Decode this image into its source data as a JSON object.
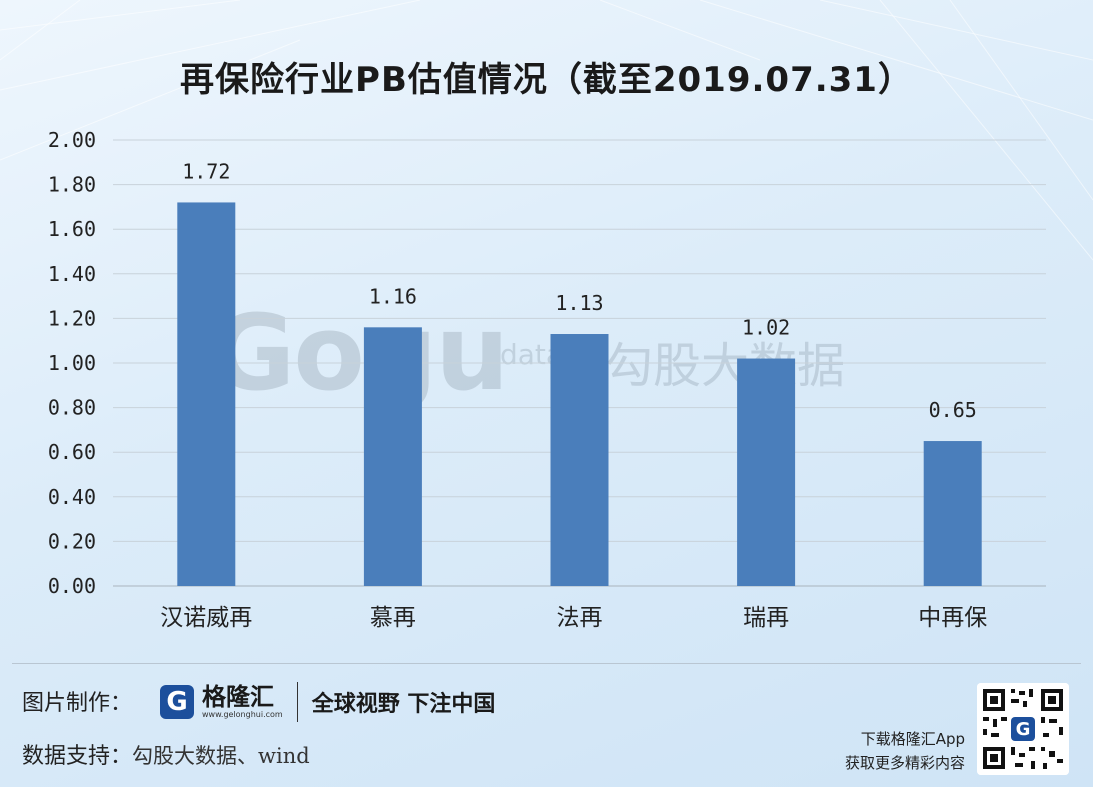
{
  "title": "再保险行业PB估值情况（截至2019.07.31）",
  "chart_data": {
    "type": "bar",
    "categories": [
      "汉诺威再",
      "慕再",
      "法再",
      "瑞再",
      "中再保"
    ],
    "values": [
      1.72,
      1.16,
      1.13,
      1.02,
      0.65
    ],
    "data_labels": [
      "1.72",
      "1.16",
      "1.13",
      "1.02",
      "0.65"
    ],
    "y_ticks": [
      "0.00",
      "0.20",
      "0.40",
      "0.60",
      "0.80",
      "1.00",
      "1.20",
      "1.40",
      "1.60",
      "1.80",
      "2.00"
    ],
    "ylim": [
      0,
      2
    ],
    "grid": true,
    "bar_color": "#4a7ebb"
  },
  "watermark": {
    "logo": "Gogu",
    "data": "data",
    "cn": "勾股大数据"
  },
  "footer": {
    "made_by_label": "图片制作：",
    "brand_icon": "G",
    "brand_name": "格隆汇",
    "brand_url": "www.gelonghui.com",
    "slogan": "全球视野 下注中国",
    "source_label": "数据支持：",
    "source_value": "勾股大数据、wind",
    "app_line1": "下载格隆汇App",
    "app_line2": "获取更多精彩内容"
  }
}
